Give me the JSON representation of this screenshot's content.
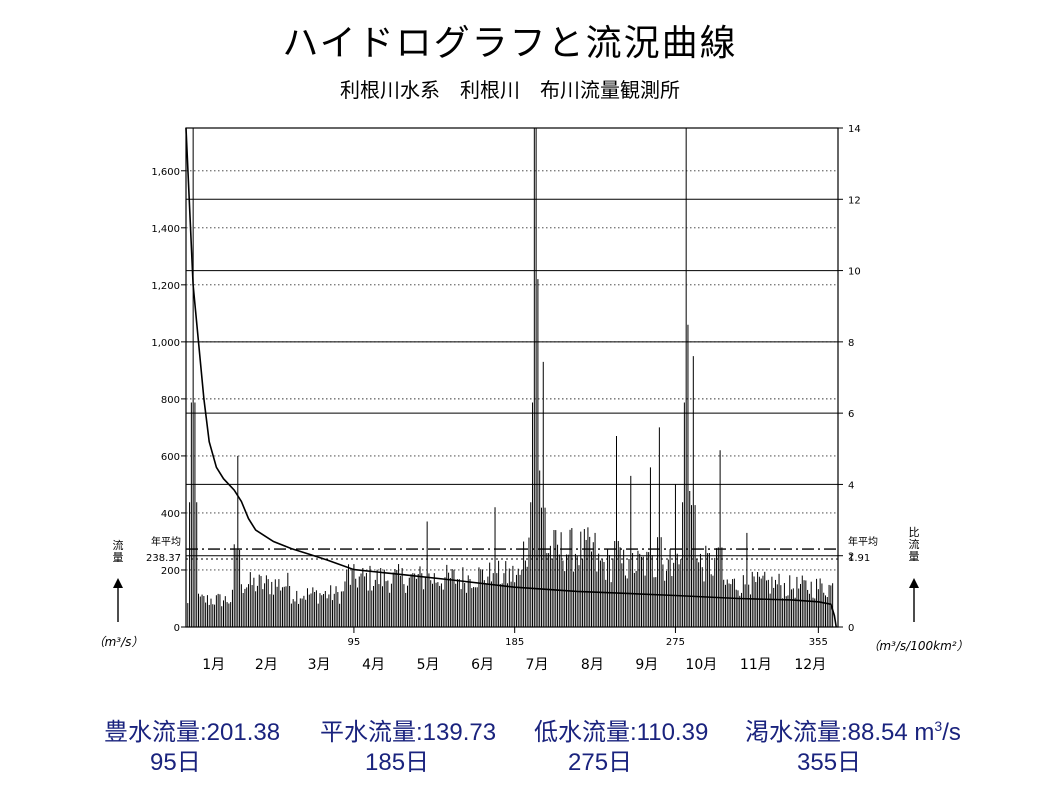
{
  "title": "ハイドログラフと流況曲線",
  "subtitle": "利根川水系　利根川　布川流量観測所",
  "colors": {
    "line": "#000000",
    "footer_text": "#1a237e"
  },
  "footer": {
    "items": [
      {
        "label": "豊水流量:",
        "value": "201.38",
        "days": "95日"
      },
      {
        "label": "平水流量:",
        "value": "139.73",
        "days": "185日"
      },
      {
        "label": "低水流量:",
        "value": "110.39",
        "days": "275日"
      },
      {
        "label": "渇水流量:",
        "value": "88.54",
        "days": "355日"
      }
    ],
    "unit": "m",
    "unit_sup": "3",
    "unit_tail": "/s"
  },
  "chart_data": {
    "type": "bar",
    "xlim": [
      1,
      366
    ],
    "ylim": [
      0,
      1750
    ],
    "y2lim": [
      0,
      14
    ],
    "ylabel": "流量",
    "y2label": "比流量",
    "ylabel_unit": "（m³/s）",
    "y2label_unit": "（m³/s/100km²）",
    "yticks": [
      0,
      200,
      400,
      600,
      800,
      1000,
      1200,
      1400,
      1600
    ],
    "ytick_labels": [
      "0",
      "200",
      "400",
      "600",
      "800",
      "1,000",
      "1,200",
      "1,400",
      "1,600"
    ],
    "y2ticks": [
      0,
      2,
      4,
      6,
      8,
      10,
      12,
      14
    ],
    "xticks": [
      95,
      185,
      275,
      355
    ],
    "months": [
      "1月",
      "2月",
      "3月",
      "4月",
      "5月",
      "6月",
      "7月",
      "8月",
      "9月",
      "10月",
      "11月",
      "12月"
    ],
    "annual_mean": {
      "label": "年平均",
      "value": 238.37,
      "value_label": "238.37",
      "specific": "1.91"
    },
    "hydrograph_peaks": [
      {
        "day": 5,
        "value": 1750
      },
      {
        "day": 28,
        "value": 290
      },
      {
        "day": 30,
        "value": 600
      },
      {
        "day": 92,
        "value": 220
      },
      {
        "day": 136,
        "value": 370
      },
      {
        "day": 174,
        "value": 420
      },
      {
        "day": 196,
        "value": 1750
      },
      {
        "day": 197,
        "value": 1750
      },
      {
        "day": 198,
        "value": 1220
      },
      {
        "day": 201,
        "value": 930
      },
      {
        "day": 230,
        "value": 330
      },
      {
        "day": 242,
        "value": 670
      },
      {
        "day": 250,
        "value": 530
      },
      {
        "day": 261,
        "value": 560
      },
      {
        "day": 266,
        "value": 700
      },
      {
        "day": 275,
        "value": 500
      },
      {
        "day": 281,
        "value": 1750
      },
      {
        "day": 282,
        "value": 1060
      },
      {
        "day": 285,
        "value": 950
      },
      {
        "day": 300,
        "value": 620
      },
      {
        "day": 315,
        "value": 330
      }
    ],
    "duration_curve": [
      [
        1,
        1750
      ],
      [
        5,
        1200
      ],
      [
        8,
        1000
      ],
      [
        11,
        800
      ],
      [
        14,
        650
      ],
      [
        18,
        560
      ],
      [
        22,
        520
      ],
      [
        28,
        480
      ],
      [
        32,
        440
      ],
      [
        36,
        380
      ],
      [
        40,
        340
      ],
      [
        45,
        320
      ],
      [
        50,
        300
      ],
      [
        60,
        275
      ],
      [
        70,
        255
      ],
      [
        80,
        235
      ],
      [
        95,
        201.38
      ],
      [
        120,
        185
      ],
      [
        150,
        165
      ],
      [
        185,
        139.73
      ],
      [
        220,
        125
      ],
      [
        250,
        117
      ],
      [
        275,
        110.39
      ],
      [
        310,
        100
      ],
      [
        340,
        95
      ],
      [
        355,
        88.54
      ],
      [
        362,
        80
      ],
      [
        364,
        40
      ],
      [
        365,
        0
      ]
    ]
  }
}
